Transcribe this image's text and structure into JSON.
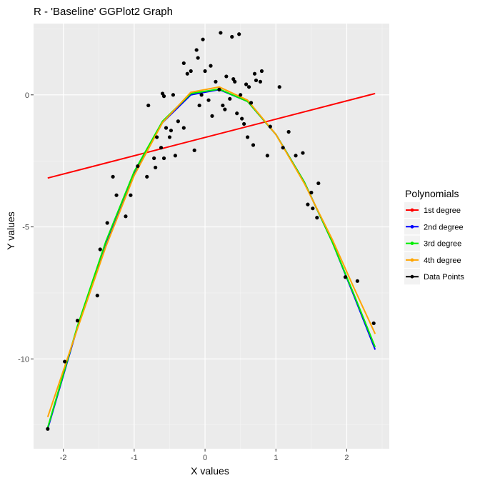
{
  "chart_data": {
    "type": "scatter",
    "title": "R - 'Baseline' GGPlot2 Graph",
    "xlabel": "X values",
    "ylabel": "Y values",
    "xlim": [
      -2.42,
      2.6
    ],
    "ylim": [
      -13.4,
      2.7
    ],
    "x_ticks": [
      -2,
      -1,
      0,
      1,
      2
    ],
    "x_tick_labels": [
      "-2",
      "-1",
      "0",
      "1",
      "2"
    ],
    "y_ticks": [
      0,
      -5,
      -10
    ],
    "y_tick_labels": [
      "0",
      "-5",
      "-10"
    ],
    "grid": true,
    "legend": {
      "title": "Polynomials",
      "placement": "right",
      "entries": [
        "1st degree",
        "2nd degree",
        "3rd degree",
        "4th degree",
        "Data Points"
      ]
    },
    "series": [
      {
        "name": "1st degree",
        "kind": "line",
        "color": "#ff0000",
        "x": [
          -2.22,
          2.4
        ],
        "y": [
          -3.15,
          0.05
        ]
      },
      {
        "name": "2nd degree",
        "kind": "line",
        "color": "#0000ff",
        "x": [
          -2.22,
          -1.8,
          -1.4,
          -1.0,
          -0.6,
          -0.2,
          0.2,
          0.6,
          1.0,
          1.4,
          1.8,
          2.1,
          2.4
        ],
        "y": [
          -12.65,
          -8.8,
          -5.6,
          -2.95,
          -1.05,
          0.0,
          0.2,
          -0.25,
          -1.5,
          -3.3,
          -5.6,
          -7.6,
          -9.65
        ]
      },
      {
        "name": "3rd degree",
        "kind": "line",
        "color": "#00ee00",
        "x": [
          -2.22,
          -1.8,
          -1.4,
          -1.0,
          -0.6,
          -0.2,
          0.2,
          0.6,
          1.0,
          1.4,
          1.8,
          2.1,
          2.4
        ],
        "y": [
          -12.6,
          -8.75,
          -5.55,
          -2.9,
          -1.0,
          0.05,
          0.22,
          -0.25,
          -1.5,
          -3.3,
          -5.6,
          -7.55,
          -9.55
        ]
      },
      {
        "name": "4th degree",
        "kind": "line",
        "color": "#ffa500",
        "x": [
          -2.22,
          -1.8,
          -1.4,
          -1.0,
          -0.6,
          -0.2,
          0.2,
          0.6,
          1.0,
          1.4,
          1.8,
          2.1,
          2.4
        ],
        "y": [
          -12.2,
          -8.85,
          -5.75,
          -3.05,
          -1.05,
          0.1,
          0.3,
          -0.2,
          -1.5,
          -3.35,
          -5.5,
          -7.3,
          -9.05
        ]
      },
      {
        "name": "Data Points",
        "kind": "points",
        "color": "#000000",
        "points": [
          [
            -2.22,
            -12.65
          ],
          [
            -1.98,
            -10.1
          ],
          [
            -1.8,
            -8.55
          ],
          [
            -1.52,
            -7.6
          ],
          [
            -1.48,
            -5.85
          ],
          [
            -1.38,
            -4.85
          ],
          [
            -1.3,
            -3.1
          ],
          [
            -1.25,
            -3.8
          ],
          [
            -1.12,
            -4.6
          ],
          [
            -1.05,
            -3.8
          ],
          [
            -0.95,
            -2.7
          ],
          [
            -0.82,
            -3.1
          ],
          [
            -0.72,
            -2.4
          ],
          [
            -0.7,
            -2.75
          ],
          [
            -0.68,
            -1.6
          ],
          [
            -0.62,
            -2.0
          ],
          [
            -0.58,
            -2.4
          ],
          [
            -0.55,
            -1.25
          ],
          [
            -0.5,
            -1.6
          ],
          [
            -0.48,
            -1.35
          ],
          [
            -0.42,
            -2.3
          ],
          [
            -0.45,
            0.0
          ],
          [
            -0.8,
            -0.4
          ],
          [
            -0.6,
            0.05
          ],
          [
            -0.58,
            -0.05
          ],
          [
            -0.38,
            -1.0
          ],
          [
            -0.3,
            -1.25
          ],
          [
            -0.25,
            0.8
          ],
          [
            -0.3,
            1.2
          ],
          [
            -0.2,
            0.9
          ],
          [
            -0.15,
            -2.1
          ],
          [
            -0.12,
            1.7
          ],
          [
            -0.1,
            1.4
          ],
          [
            -0.08,
            -0.4
          ],
          [
            -0.05,
            0.0
          ],
          [
            -0.03,
            2.1
          ],
          [
            0.0,
            0.9
          ],
          [
            0.05,
            -0.2
          ],
          [
            0.08,
            1.1
          ],
          [
            0.1,
            -0.8
          ],
          [
            0.15,
            0.5
          ],
          [
            0.2,
            0.2
          ],
          [
            0.22,
            2.35
          ],
          [
            0.25,
            -0.4
          ],
          [
            0.28,
            -0.55
          ],
          [
            0.3,
            0.7
          ],
          [
            0.35,
            -0.15
          ],
          [
            0.38,
            2.2
          ],
          [
            0.4,
            0.6
          ],
          [
            0.42,
            0.5
          ],
          [
            0.45,
            -0.7
          ],
          [
            0.48,
            2.3
          ],
          [
            0.5,
            0.0
          ],
          [
            0.52,
            -0.9
          ],
          [
            0.55,
            -1.1
          ],
          [
            0.58,
            0.4
          ],
          [
            0.6,
            -1.6
          ],
          [
            0.62,
            0.3
          ],
          [
            0.65,
            -0.3
          ],
          [
            0.68,
            -1.9
          ],
          [
            0.7,
            0.8
          ],
          [
            0.72,
            0.55
          ],
          [
            0.78,
            0.5
          ],
          [
            0.8,
            0.9
          ],
          [
            0.88,
            -2.3
          ],
          [
            0.92,
            -1.2
          ],
          [
            1.05,
            0.3
          ],
          [
            1.1,
            -2.0
          ],
          [
            1.18,
            -1.4
          ],
          [
            1.28,
            -2.3
          ],
          [
            1.38,
            -2.2
          ],
          [
            1.45,
            -4.15
          ],
          [
            1.5,
            -3.7
          ],
          [
            1.52,
            -4.3
          ],
          [
            1.58,
            -4.65
          ],
          [
            1.6,
            -3.35
          ],
          [
            1.98,
            -6.9
          ],
          [
            2.15,
            -7.05
          ],
          [
            2.38,
            -8.65
          ]
        ]
      }
    ]
  }
}
